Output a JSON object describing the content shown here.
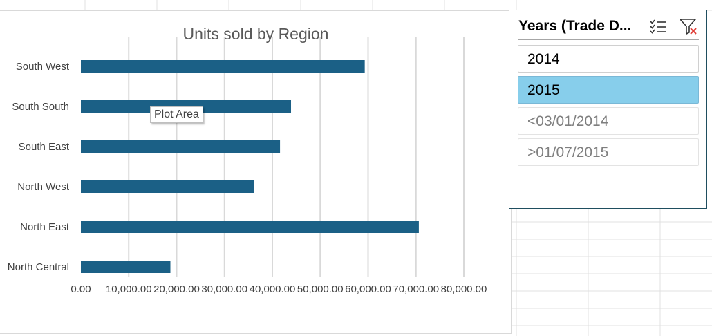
{
  "colors": {
    "bar": "#1b6086",
    "gridline": "#d9d9d9",
    "selected": "#87ceeb",
    "slicer_border": "#1f4e5f"
  },
  "chart_data": {
    "type": "bar",
    "orientation": "horizontal",
    "title": "Units sold by Region",
    "categories": [
      "South West",
      "South South",
      "South East",
      "North West",
      "North East",
      "North Central"
    ],
    "values": [
      59300,
      43900,
      41600,
      36100,
      70600,
      18700
    ],
    "xlim": [
      0,
      80000
    ],
    "x_ticks": [
      0,
      10000,
      20000,
      30000,
      40000,
      50000,
      60000,
      70000,
      80000
    ],
    "x_tick_labels": [
      "0.00",
      "10,000.00",
      "20,000.00",
      "30,000.00",
      "40,000.00",
      "50,000.00",
      "60,000.00",
      "70,000.00",
      "80,000.00"
    ],
    "grid": "vertical",
    "legend": "none"
  },
  "tooltip": {
    "text": "Plot Area"
  },
  "slicer": {
    "title": "Years (Trade D...",
    "multiselect_icon": "multiselect-icon",
    "clear_filter_icon": "clear-filter-icon",
    "items": [
      {
        "label": "2014",
        "state": "normal"
      },
      {
        "label": "2015",
        "state": "selected"
      },
      {
        "label": "<03/01/2014",
        "state": "nodata"
      },
      {
        "label": ">01/07/2015",
        "state": "nodata"
      }
    ]
  }
}
